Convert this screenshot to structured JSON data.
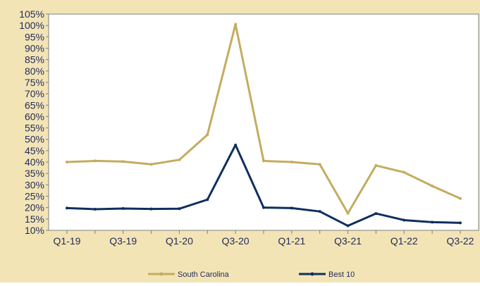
{
  "colors": {
    "background": "#f3e4b6",
    "plot_background": "#ffffff",
    "south_carolina": "#c4ac60",
    "best_10": "#0e2f5e",
    "axis": "#808080",
    "text": "#1f2a5a"
  },
  "chart_data": {
    "type": "line",
    "title": "",
    "xlabel": "",
    "ylabel": "",
    "ylim": [
      10,
      105
    ],
    "yticks": [
      10,
      15,
      20,
      25,
      30,
      35,
      40,
      45,
      50,
      55,
      60,
      65,
      70,
      75,
      80,
      85,
      90,
      95,
      100,
      105
    ],
    "ytick_suffix": "%",
    "grid": false,
    "legend_position": "bottom",
    "categories": [
      "Q1-19",
      "Q2-19",
      "Q3-19",
      "Q4-19",
      "Q1-20",
      "Q2-20",
      "Q3-20",
      "Q4-20",
      "Q1-21",
      "Q2-21",
      "Q3-21",
      "Q4-21",
      "Q1-22",
      "Q2-22",
      "Q3-22"
    ],
    "xtick_labels": [
      "Q1-19",
      "",
      "Q3-19",
      "",
      "Q1-20",
      "",
      "Q3-20",
      "",
      "Q1-21",
      "",
      "Q3-21",
      "",
      "Q1-22",
      "",
      "Q3-22"
    ],
    "series": [
      {
        "name": "South Carolina",
        "color_key": "south_carolina",
        "values": [
          40,
          40.5,
          40.2,
          39,
          41,
          52,
          100.5,
          40.5,
          40,
          39,
          17.5,
          38.5,
          35.5,
          29.5,
          24
        ]
      },
      {
        "name": "Best 10",
        "color_key": "best_10",
        "values": [
          19.8,
          19.3,
          19.6,
          19.4,
          19.5,
          23.5,
          47.5,
          20,
          19.8,
          18.3,
          12,
          17.4,
          14.5,
          13.6,
          13.3
        ]
      }
    ]
  }
}
